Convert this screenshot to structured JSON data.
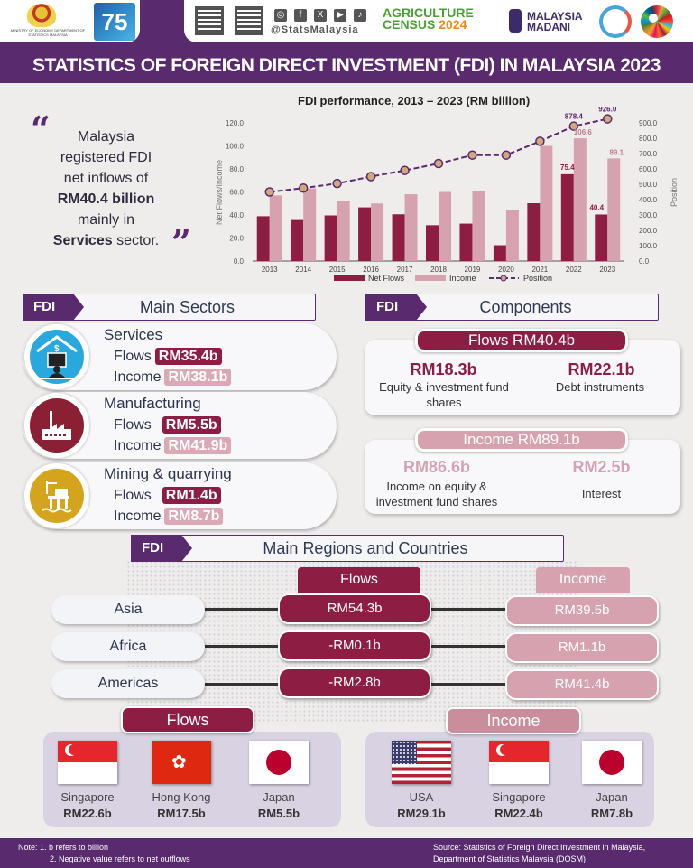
{
  "header": {
    "ministry_text": "MINISTRY OF ECONOMY\nDEPARTMENT OF STATISTICS MALAYSIA",
    "dosm_badge": "75",
    "social_handle": "@StatsMalaysia",
    "social_icons": [
      "instagram-icon",
      "facebook-icon",
      "x-icon",
      "youtube-icon",
      "tiktok-icon"
    ],
    "agri_census_line1": "AGRICULTURE",
    "agri_census_line2": "CENSUS",
    "agri_census_year": "2024",
    "madani_line1": "MALAYSIA",
    "madani_line2": "MADANI"
  },
  "title": "STATISTICS OF FOREIGN DIRECT INVESTMENT (FDI) IN MALAYSIA 2023",
  "quote": {
    "line1": "Malaysia",
    "line2": "registered FDI",
    "line3": "net inflows of",
    "highlight": "RM40.4 billion",
    "line5": "mainly in",
    "sector_bold": "Services",
    "sector_rest": " sector."
  },
  "chart_data": {
    "type": "bar",
    "title": "FDI performance, 2013 – 2023 (RM billion)",
    "xlabel": "",
    "ylabel": "Net Flows/Income",
    "y2label": "Position",
    "categories": [
      "2013",
      "2014",
      "2015",
      "2016",
      "2017",
      "2018",
      "2019",
      "2020",
      "2021",
      "2022",
      "2023"
    ],
    "series": [
      {
        "name": "Net Flows",
        "type": "bar",
        "color": "#8e1d44",
        "values": [
          38.9,
          35.6,
          39.6,
          46.6,
          40.6,
          31.1,
          32.5,
          13.7,
          50.2,
          75.4,
          40.4
        ]
      },
      {
        "name": "Income",
        "type": "bar",
        "color": "#d6a2b0",
        "values": [
          57.0,
          63.0,
          52.0,
          50.0,
          58.0,
          60.0,
          61.0,
          44.0,
          100.0,
          106.6,
          89.1
        ]
      },
      {
        "name": "Position",
        "type": "line",
        "axis": "right",
        "color": "#5a2a6e",
        "values": [
          450.0,
          475.0,
          505.0,
          550.0,
          590.0,
          635.0,
          690.0,
          690.0,
          780.0,
          878.4,
          926.0
        ]
      }
    ],
    "data_labels": {
      "net_2022": "75.4",
      "net_2023": "40.4",
      "income_2022": "106.6",
      "income_2023": "89.1",
      "position_2022": "878.4",
      "position_2023": "926.0"
    },
    "ylim": [
      0,
      120
    ],
    "y2lim": [
      0,
      900
    ],
    "yticks": [
      "0.0",
      "20.0",
      "40.0",
      "60.0",
      "80.0",
      "100.0",
      "120.0"
    ],
    "y2ticks": [
      "0.0",
      "100.0",
      "200.0",
      "300.0",
      "400.0",
      "500.0",
      "600.0",
      "700.0",
      "800.0",
      "900.0"
    ],
    "legend": [
      "Net Flows",
      "Income",
      "Position"
    ],
    "legend_position": "bottom",
    "grid": false
  },
  "sectors": {
    "tag": "FDI",
    "heading": "Main Sectors",
    "flows_label": "Flows",
    "income_label": "Income",
    "items": [
      {
        "name": "Services",
        "flows": "RM35.4b",
        "income": "RM38.1b",
        "icon_color": "#29a8dd"
      },
      {
        "name": "Manufacturing",
        "flows": "RM5.5b",
        "income": "RM41.9b",
        "icon_color": "#8b1f33"
      },
      {
        "name": "Mining & quarrying",
        "flows": "RM1.4b",
        "income": "RM8.7b",
        "icon_color": "#d4a51c"
      }
    ]
  },
  "components": {
    "tag": "FDI",
    "heading": "Components",
    "flows": {
      "title": "Flows RM40.4b",
      "items": [
        {
          "value": "RM18.3b",
          "desc": "Equity & investment fund shares"
        },
        {
          "value": "RM22.1b",
          "desc": "Debt instruments"
        }
      ]
    },
    "income": {
      "title": "Income RM89.1b",
      "items": [
        {
          "value": "RM86.6b",
          "desc": "Income on equity & investment fund shares"
        },
        {
          "value": "RM2.5b",
          "desc": "Interest"
        }
      ]
    }
  },
  "regions": {
    "tag": "FDI",
    "heading": "Main Regions and Countries",
    "flows_col": "Flows",
    "income_col": "Income",
    "rows": [
      {
        "region": "Asia",
        "flows": "RM54.3b",
        "income": "RM39.5b"
      },
      {
        "region": "Africa",
        "flows": "-RM0.1b",
        "income": "RM1.1b"
      },
      {
        "region": "Americas",
        "flows": "-RM2.8b",
        "income": "RM41.4b"
      }
    ]
  },
  "countries": {
    "flows_title": "Flows",
    "income_title": "Income",
    "flows": [
      {
        "name": "Singapore",
        "value": "RM22.6b"
      },
      {
        "name": "Hong Kong",
        "value": "RM17.5b"
      },
      {
        "name": "Japan",
        "value": "RM5.5b"
      }
    ],
    "income": [
      {
        "name": "USA",
        "value": "RM29.1b"
      },
      {
        "name": "Singapore",
        "value": "RM22.4b"
      },
      {
        "name": "Japan",
        "value": "RM7.8b"
      }
    ]
  },
  "footer": {
    "note1": "Note: 1. b refers to billion",
    "note2": "2. Negative value refers to net outflows",
    "source1": "Source: Statistics of Foreign Direct Investment in Malaysia,",
    "source2": "Department of Statistics Malaysia (DOSM)"
  },
  "colors": {
    "purple": "#5a2a6e",
    "maroon": "#8e1d44",
    "pink": "#d6a2b0"
  }
}
